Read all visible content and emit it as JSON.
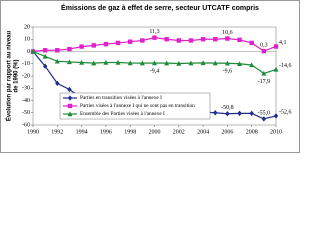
{
  "chart_data": {
    "type": "line",
    "title": "Émissions de gaz à effet de serre, secteur UTCATF compris",
    "ylabel": [
      "Évolution par rapport au niveau",
      "de 1990 (%)"
    ],
    "x": [
      1990,
      1991,
      1992,
      1993,
      1994,
      1995,
      1996,
      1997,
      1998,
      1999,
      2000,
      2001,
      2002,
      2003,
      2004,
      2005,
      2006,
      2007,
      2008,
      2009,
      2010
    ],
    "xlim": [
      1990,
      2010
    ],
    "xticks": [
      1990,
      1992,
      1994,
      1996,
      1998,
      2000,
      2002,
      2004,
      2006,
      2008,
      2010
    ],
    "ylim": [
      -60,
      20
    ],
    "yticks": [
      20,
      10,
      0,
      -10,
      -20,
      -30,
      -40,
      -50,
      -60
    ],
    "legend": "lower center",
    "series": [
      {
        "name": "Parties en transition visées à l'annexe I",
        "color": "#1f2e8c",
        "marker": "diamond",
        "values": [
          0,
          -12,
          -26,
          -31,
          -38,
          -41,
          -43,
          -46,
          -48,
          -50,
          -51.6,
          -51,
          -50.5,
          -50,
          -49.5,
          -50,
          -50.8,
          -50.5,
          -50.5,
          -55.0,
          -52.6
        ],
        "value_labels": [
          null,
          null,
          null,
          null,
          null,
          null,
          null,
          null,
          null,
          null,
          "-51,6",
          null,
          null,
          null,
          null,
          null,
          "-50,8",
          null,
          null,
          "-55,0",
          "-52,6"
        ]
      },
      {
        "name": "Parties visées à l'annexe I qui ne sont pas en transition",
        "color": "#e020c8",
        "marker": "square",
        "values": [
          0,
          1,
          1,
          2,
          4,
          5,
          6,
          7,
          8,
          9,
          11.3,
          10,
          9,
          9,
          10,
          10,
          10.6,
          9.5,
          7,
          0.3,
          4.1
        ],
        "value_labels": [
          null,
          null,
          null,
          null,
          null,
          null,
          null,
          null,
          null,
          null,
          "11,3",
          null,
          null,
          null,
          null,
          null,
          "10,6",
          null,
          null,
          "0,3",
          "4,1"
        ]
      },
      {
        "name": "Ensemble des Parties visées à l'annexe I",
        "color": "#1e8a3a",
        "marker": "triangle",
        "values": [
          0,
          -4,
          -8,
          -8.5,
          -9,
          -9.5,
          -9,
          -9,
          -9.4,
          -9.5,
          -9.4,
          -9.5,
          -9.8,
          -9.5,
          -9.3,
          -9.5,
          -9.6,
          -10,
          -11,
          -17.9,
          -14.6
        ],
        "value_labels": [
          null,
          null,
          null,
          null,
          null,
          null,
          null,
          null,
          null,
          null,
          "-9,4",
          null,
          null,
          null,
          null,
          null,
          "-9,6",
          null,
          null,
          "-17,9",
          "-14,6"
        ]
      }
    ]
  }
}
